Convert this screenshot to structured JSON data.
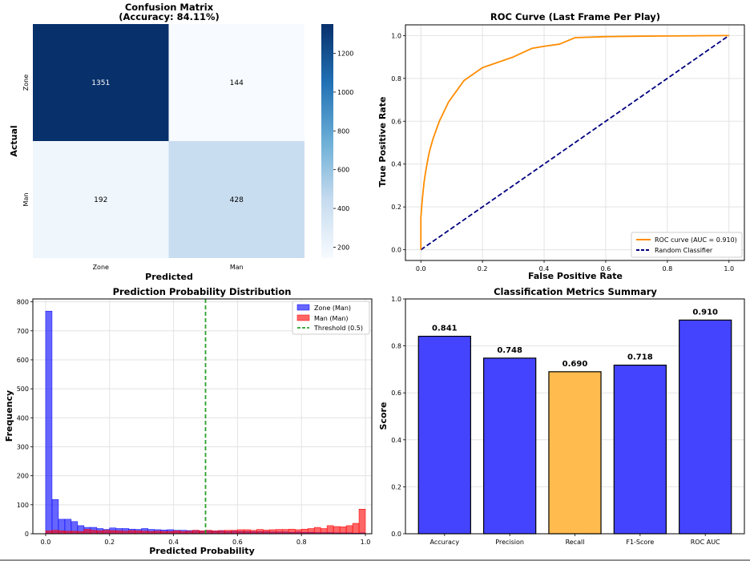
{
  "chart_data": [
    {
      "type": "heatmap",
      "title": "Confusion Matrix",
      "subtitle": "(Accuracy: 84.11%)",
      "xlabel": "Predicted",
      "ylabel": "Actual",
      "x_categories": [
        "Zone",
        "Man"
      ],
      "y_categories": [
        "Zone",
        "Man"
      ],
      "values": [
        [
          1351,
          144
        ],
        [
          192,
          428
        ]
      ],
      "colormap": "Blues",
      "colorbar_range": [
        144,
        1351
      ],
      "colorbar_ticks": [
        200,
        400,
        600,
        800,
        1000,
        1200
      ],
      "colorbar_tick_labels": [
        "200",
        "400",
        "600",
        "800",
        "1000",
        "1200"
      ]
    },
    {
      "type": "line",
      "title": "ROC Curve (Last Frame Per Play)",
      "xlabel": "False Positive Rate",
      "ylabel": "True Positive Rate",
      "xlim": [
        0,
        1
      ],
      "ylim": [
        0,
        1
      ],
      "x_ticks": [
        "0.0",
        "0.2",
        "0.4",
        "0.6",
        "0.8",
        "1.0"
      ],
      "y_ticks": [
        "0.0",
        "0.2",
        "0.4",
        "0.6",
        "0.8",
        "1.0"
      ],
      "grid": true,
      "legend_position": "bottom-right",
      "series": [
        {
          "name": "ROC curve (AUC = 0.910)",
          "color": "#ff8c00",
          "style": "solid",
          "x": [
            0,
            0.0,
            0.005,
            0.01,
            0.015,
            0.02,
            0.025,
            0.03,
            0.04,
            0.05,
            0.06,
            0.07,
            0.08,
            0.09,
            0.1,
            0.12,
            0.14,
            0.16,
            0.18,
            0.2,
            0.22,
            0.24,
            0.26,
            0.28,
            0.3,
            0.33,
            0.36,
            0.4,
            0.45,
            0.5,
            0.6,
            0.7,
            0.8,
            0.9,
            1.0
          ],
          "y": [
            0,
            0.15,
            0.24,
            0.31,
            0.36,
            0.4,
            0.44,
            0.47,
            0.52,
            0.56,
            0.6,
            0.63,
            0.66,
            0.69,
            0.71,
            0.75,
            0.79,
            0.81,
            0.83,
            0.85,
            0.86,
            0.87,
            0.88,
            0.89,
            0.9,
            0.92,
            0.94,
            0.95,
            0.96,
            0.99,
            0.995,
            0.997,
            0.998,
            0.999,
            1.0
          ]
        },
        {
          "name": "Random Classifier",
          "color": "#000080",
          "style": "dashed",
          "x": [
            0,
            1
          ],
          "y": [
            0,
            1
          ]
        }
      ]
    },
    {
      "type": "bar",
      "subtype": "histogram",
      "title": "Prediction Probability Distribution",
      "xlabel": "Predicted Probability",
      "ylabel": "Frequency",
      "xlim": [
        -0.04,
        1.02
      ],
      "ylim": [
        0,
        810
      ],
      "x_ticks": [
        "0.0",
        "0.2",
        "0.4",
        "0.6",
        "0.8",
        "1.0"
      ],
      "y_ticks": [
        "0",
        "100",
        "200",
        "300",
        "400",
        "500",
        "600",
        "700",
        "800"
      ],
      "bins": 50,
      "bin_range": [
        0,
        1
      ],
      "grid": true,
      "legend_position": "top-right",
      "series": [
        {
          "name": "Zone (Man)",
          "color": "#0000ff",
          "values": [
            768,
            118,
            50,
            50,
            42,
            28,
            22,
            22,
            18,
            15,
            20,
            18,
            18,
            16,
            15,
            18,
            15,
            14,
            13,
            14,
            12,
            12,
            11,
            12,
            10,
            11,
            10,
            11,
            8,
            9,
            8,
            8,
            7,
            7,
            7,
            6,
            6,
            6,
            5,
            6,
            5,
            5,
            4,
            4,
            4,
            3,
            3,
            3,
            2,
            3
          ]
        },
        {
          "name": "Man (Man)",
          "color": "#ff0000",
          "values": [
            10,
            12,
            10,
            9,
            9,
            8,
            15,
            12,
            10,
            12,
            11,
            10,
            9,
            11,
            10,
            9,
            8,
            9,
            8,
            8,
            10,
            8,
            9,
            12,
            10,
            12,
            10,
            11,
            12,
            12,
            14,
            14,
            12,
            15,
            13,
            14,
            15,
            15,
            16,
            14,
            16,
            18,
            22,
            18,
            28,
            25,
            24,
            28,
            36,
            85
          ]
        },
        {
          "name": "Threshold (0.5)",
          "color": "#2ca02c",
          "style": "dashed",
          "x": 0.5
        }
      ]
    },
    {
      "type": "bar",
      "title": "Classification Metrics Summary",
      "xlabel": "",
      "ylabel": "Score",
      "ylim": [
        0,
        1.0
      ],
      "y_ticks": [
        "0.0",
        "0.2",
        "0.4",
        "0.6",
        "0.8",
        "1.0"
      ],
      "grid": true,
      "categories": [
        "Accuracy",
        "Precision",
        "Recall",
        "F1-Score",
        "ROC AUC"
      ],
      "values": [
        0.841,
        0.748,
        0.69,
        0.718,
        0.91
      ],
      "value_labels": [
        "0.841",
        "0.748",
        "0.690",
        "0.718",
        "0.910"
      ],
      "colors": [
        "#4444ff",
        "#4444ff",
        "#ffbb4d",
        "#4444ff",
        "#4444ff"
      ]
    }
  ]
}
